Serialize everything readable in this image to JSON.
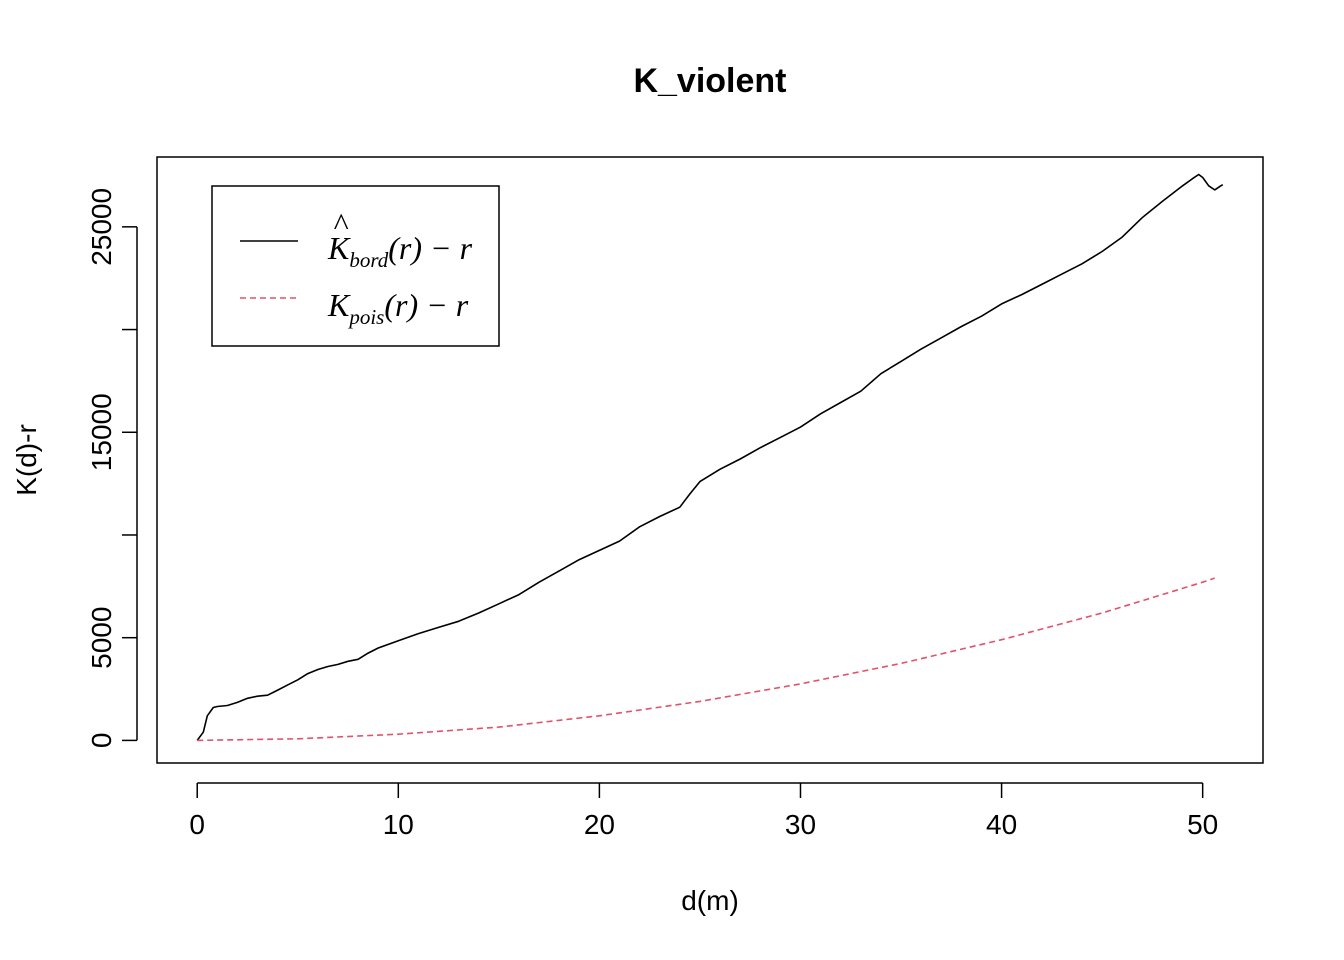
{
  "chart_data": {
    "type": "line",
    "title": "K_violent",
    "xlabel": "d(m)",
    "ylabel": "K(d)-r",
    "xlim": [
      -2,
      53
    ],
    "ylim": [
      -1100,
      28400
    ],
    "x_ticks": [
      0,
      10,
      20,
      30,
      40,
      50
    ],
    "y_ticks": [
      0,
      5000,
      15000,
      25000
    ],
    "y_minor_ticks": [
      10000,
      20000
    ],
    "grid": false,
    "legend": {
      "position": "top-left",
      "entries": [
        {
          "base": "K",
          "hat": "^",
          "subscript": "bord",
          "suffix": "(r) − r",
          "color": "#000000",
          "style": "solid"
        },
        {
          "base": "K",
          "hat": "",
          "subscript": "pois",
          "suffix": "(r) − r",
          "color": "#DF536B",
          "style": "dashed"
        }
      ]
    },
    "series": [
      {
        "color": "#000000",
        "style": "solid",
        "x": [
          0,
          0.3,
          0.5,
          0.8,
          1.0,
          1.5,
          2.0,
          2.5,
          3.0,
          3.5,
          4.0,
          4.5,
          5.0,
          5.5,
          6.0,
          6.5,
          7.0,
          7.5,
          8.0,
          8.5,
          9.0,
          10.0,
          11.0,
          12.0,
          13.0,
          14.0,
          15.0,
          16.0,
          17.0,
          18.0,
          19.0,
          20.0,
          21.0,
          22.0,
          23.0,
          24.0,
          24.5,
          25.0,
          26.0,
          27.0,
          28.0,
          29.0,
          30.0,
          31.0,
          32.0,
          33.0,
          34.0,
          35.0,
          36.0,
          37.0,
          38.0,
          39.0,
          40.0,
          41.0,
          42.0,
          43.0,
          44.0,
          45.0,
          46.0,
          47.0,
          48.0,
          49.0,
          49.5,
          49.8,
          50.0,
          50.3,
          50.6,
          50.9,
          51.0
        ],
        "y": [
          0,
          400,
          1200,
          1600,
          1650,
          1700,
          1850,
          2050,
          2150,
          2200,
          2450,
          2700,
          2950,
          3250,
          3450,
          3600,
          3700,
          3850,
          3950,
          4250,
          4500,
          4850,
          5200,
          5500,
          5800,
          6200,
          6650,
          7100,
          7700,
          8250,
          8800,
          9250,
          9700,
          10400,
          10900,
          11350,
          12000,
          12600,
          13200,
          13700,
          14250,
          14750,
          15250,
          15900,
          16450,
          17000,
          17850,
          18450,
          19050,
          19600,
          20150,
          20650,
          21250,
          21700,
          22200,
          22700,
          23200,
          23800,
          24500,
          25450,
          26250,
          27000,
          27350,
          27550,
          27400,
          27000,
          26800,
          27000,
          27050
        ]
      },
      {
        "color": "#DF536B",
        "style": "dashed",
        "x": [
          0,
          5,
          10,
          15,
          20,
          25,
          30,
          35,
          40,
          45,
          50,
          50.6
        ],
        "y": [
          0,
          80,
          300,
          650,
          1200,
          1900,
          2750,
          3750,
          4900,
          6200,
          7700,
          7900
        ]
      }
    ]
  }
}
